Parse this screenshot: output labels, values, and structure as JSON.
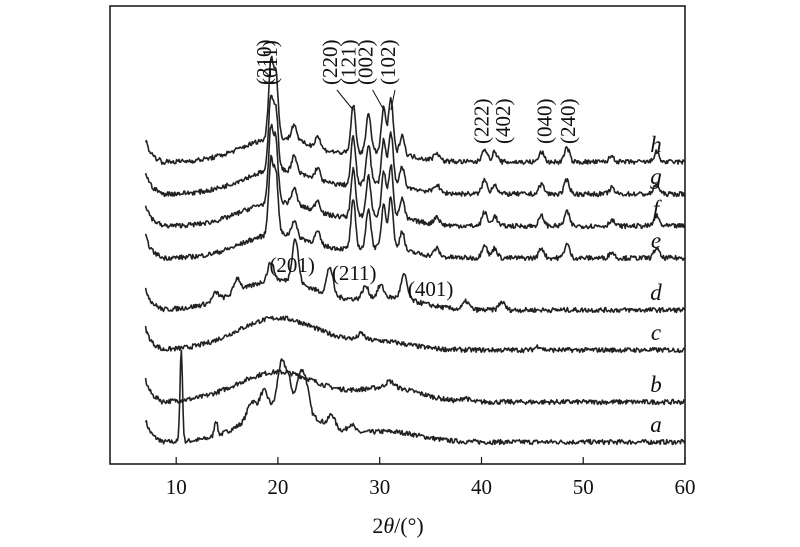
{
  "chart_data": {
    "type": "line",
    "title": "",
    "xlabel": {
      "prefix": "2",
      "theta": "θ",
      "suffix": "/(°)"
    },
    "ylabel": "",
    "xlim": [
      7,
      60
    ],
    "xticks": [
      "10",
      "20",
      "30",
      "40",
      "50",
      "60"
    ],
    "xtick_values": [
      10,
      20,
      30,
      40,
      50,
      60
    ],
    "yticks": [],
    "grid": false,
    "legend": "none",
    "line_color": "#222222",
    "series": [
      {
        "name": "a",
        "baseline": 0.0,
        "peaks": [
          [
            10.5,
            2.3,
            0.12
          ],
          [
            13.9,
            0.4,
            0.15
          ],
          [
            17.4,
            0.4,
            0.4
          ],
          [
            18.6,
            0.5,
            0.4
          ],
          [
            20.3,
            1.0,
            0.35
          ],
          [
            21.0,
            0.7,
            0.35
          ],
          [
            22.2,
            0.9,
            0.35
          ],
          [
            22.8,
            0.6,
            0.3
          ],
          [
            25.3,
            0.3,
            0.3
          ],
          [
            27.2,
            0.2,
            0.3
          ]
        ],
        "humps": [
          [
            20.5,
            0.9,
            3.5
          ],
          [
            31.0,
            0.25,
            3.0
          ]
        ]
      },
      {
        "name": "b",
        "baseline": 1.0,
        "peaks": [
          [
            31.0,
            0.15,
            0.4
          ],
          [
            38.4,
            0.1,
            0.3
          ]
        ],
        "humps": [
          [
            20.0,
            0.75,
            4.0
          ],
          [
            31.0,
            0.35,
            3.0
          ]
        ]
      },
      {
        "name": "c",
        "baseline": 2.3,
        "peaks": [
          [
            28.2,
            0.15,
            0.3
          ],
          [
            45.6,
            0.1,
            0.3
          ]
        ],
        "humps": [
          [
            20.0,
            0.8,
            4.0
          ],
          [
            30.0,
            0.2,
            3.0
          ]
        ]
      },
      {
        "name": "d",
        "baseline": 3.3,
        "peaks": [
          [
            13.9,
            0.2,
            0.3
          ],
          [
            16.0,
            0.35,
            0.3
          ],
          [
            19.3,
            0.45,
            0.3
          ],
          [
            21.7,
            1.1,
            0.3
          ],
          [
            25.1,
            0.7,
            0.3
          ],
          [
            28.6,
            0.3,
            0.3
          ],
          [
            30.1,
            0.3,
            0.3
          ],
          [
            32.4,
            0.6,
            0.3
          ],
          [
            38.5,
            0.2,
            0.3
          ],
          [
            42.0,
            0.2,
            0.3
          ]
        ],
        "humps": [
          [
            20.0,
            0.75,
            4.0
          ],
          [
            31.0,
            0.3,
            3.0
          ]
        ]
      },
      {
        "name": "e",
        "baseline": 4.6,
        "peaks": [
          [
            19.3,
            1.8,
            0.22
          ],
          [
            19.8,
            1.5,
            0.22
          ],
          [
            21.6,
            0.4,
            0.25
          ],
          [
            23.9,
            0.3,
            0.25
          ],
          [
            27.4,
            1.2,
            0.22
          ],
          [
            28.9,
            1.0,
            0.22
          ],
          [
            30.4,
            1.1,
            0.22
          ],
          [
            31.1,
            1.3,
            0.22
          ],
          [
            32.2,
            0.5,
            0.22
          ],
          [
            35.6,
            0.2,
            0.25
          ],
          [
            40.3,
            0.35,
            0.25
          ],
          [
            41.3,
            0.25,
            0.25
          ],
          [
            45.9,
            0.25,
            0.25
          ],
          [
            48.4,
            0.35,
            0.25
          ],
          [
            52.8,
            0.15,
            0.25
          ],
          [
            57.2,
            0.25,
            0.25
          ]
        ],
        "humps": [
          [
            20.0,
            0.6,
            3.5
          ],
          [
            30.0,
            0.25,
            3.0
          ]
        ]
      },
      {
        "name": "f",
        "baseline": 5.4,
        "peaks": [
          [
            19.3,
            1.8,
            0.22
          ],
          [
            19.8,
            1.5,
            0.22
          ],
          [
            21.6,
            0.4,
            0.25
          ],
          [
            23.9,
            0.3,
            0.25
          ],
          [
            27.4,
            1.2,
            0.22
          ],
          [
            28.9,
            1.0,
            0.22
          ],
          [
            30.4,
            1.1,
            0.22
          ],
          [
            31.1,
            1.3,
            0.22
          ],
          [
            32.2,
            0.5,
            0.22
          ],
          [
            35.6,
            0.2,
            0.25
          ],
          [
            40.3,
            0.35,
            0.25
          ],
          [
            41.3,
            0.25,
            0.25
          ],
          [
            45.9,
            0.25,
            0.25
          ],
          [
            48.4,
            0.35,
            0.25
          ],
          [
            52.8,
            0.15,
            0.25
          ],
          [
            57.2,
            0.25,
            0.25
          ]
        ],
        "humps": [
          [
            20.0,
            0.6,
            3.5
          ],
          [
            30.0,
            0.25,
            3.0
          ]
        ]
      },
      {
        "name": "g",
        "baseline": 6.2,
        "peaks": [
          [
            19.3,
            1.8,
            0.22
          ],
          [
            19.8,
            1.5,
            0.22
          ],
          [
            21.6,
            0.4,
            0.25
          ],
          [
            23.9,
            0.3,
            0.25
          ],
          [
            27.4,
            1.2,
            0.22
          ],
          [
            28.9,
            1.0,
            0.22
          ],
          [
            30.4,
            1.1,
            0.22
          ],
          [
            31.1,
            1.3,
            0.22
          ],
          [
            32.2,
            0.5,
            0.22
          ],
          [
            35.6,
            0.2,
            0.25
          ],
          [
            40.3,
            0.35,
            0.25
          ],
          [
            41.3,
            0.25,
            0.25
          ],
          [
            45.9,
            0.25,
            0.25
          ],
          [
            48.4,
            0.35,
            0.25
          ],
          [
            52.8,
            0.15,
            0.25
          ],
          [
            57.2,
            0.25,
            0.25
          ]
        ],
        "humps": [
          [
            20.0,
            0.6,
            3.5
          ],
          [
            30.0,
            0.25,
            3.0
          ]
        ]
      },
      {
        "name": "h",
        "baseline": 7.0,
        "peaks": [
          [
            19.3,
            1.9,
            0.22
          ],
          [
            19.8,
            1.6,
            0.22
          ],
          [
            21.6,
            0.4,
            0.25
          ],
          [
            23.9,
            0.3,
            0.25
          ],
          [
            27.4,
            1.2,
            0.22
          ],
          [
            28.9,
            1.0,
            0.22
          ],
          [
            30.4,
            1.1,
            0.22
          ],
          [
            31.1,
            1.35,
            0.22
          ],
          [
            32.2,
            0.5,
            0.22
          ],
          [
            35.6,
            0.2,
            0.25
          ],
          [
            40.3,
            0.35,
            0.25
          ],
          [
            41.3,
            0.25,
            0.25
          ],
          [
            45.9,
            0.25,
            0.25
          ],
          [
            48.4,
            0.35,
            0.25
          ],
          [
            52.8,
            0.15,
            0.25
          ],
          [
            57.2,
            0.25,
            0.25
          ]
        ],
        "humps": [
          [
            20.0,
            0.6,
            3.5
          ],
          [
            30.0,
            0.25,
            3.0
          ]
        ]
      }
    ],
    "annotations": [
      {
        "text": "(210)",
        "x": 19.3,
        "orientation": "vertical",
        "row": "top"
      },
      {
        "text": "(011)",
        "x": 19.9,
        "orientation": "vertical",
        "row": "top"
      },
      {
        "text": "(220)",
        "x": 25.8,
        "orientation": "vertical",
        "row": "top"
      },
      {
        "text": "(121)",
        "x": 27.6,
        "orientation": "vertical",
        "row": "top"
      },
      {
        "text": "(002)",
        "x": 29.3,
        "orientation": "vertical",
        "row": "top"
      },
      {
        "text": "(102)",
        "x": 31.5,
        "orientation": "vertical",
        "row": "top"
      },
      {
        "text": "(222)",
        "x": 40.7,
        "orientation": "vertical",
        "row": "mid"
      },
      {
        "text": "(402)",
        "x": 42.8,
        "orientation": "vertical",
        "row": "mid"
      },
      {
        "text": "(040)",
        "x": 46.9,
        "orientation": "vertical",
        "row": "mid"
      },
      {
        "text": "(240)",
        "x": 49.2,
        "orientation": "vertical",
        "row": "mid"
      },
      {
        "text": "(201)",
        "x": 21.4,
        "orientation": "horizontal",
        "row": "d"
      },
      {
        "text": "(211)",
        "x": 27.5,
        "orientation": "horizontal",
        "row": "d"
      },
      {
        "text": "(401)",
        "x": 35.0,
        "orientation": "horizontal",
        "row": "d"
      }
    ]
  }
}
